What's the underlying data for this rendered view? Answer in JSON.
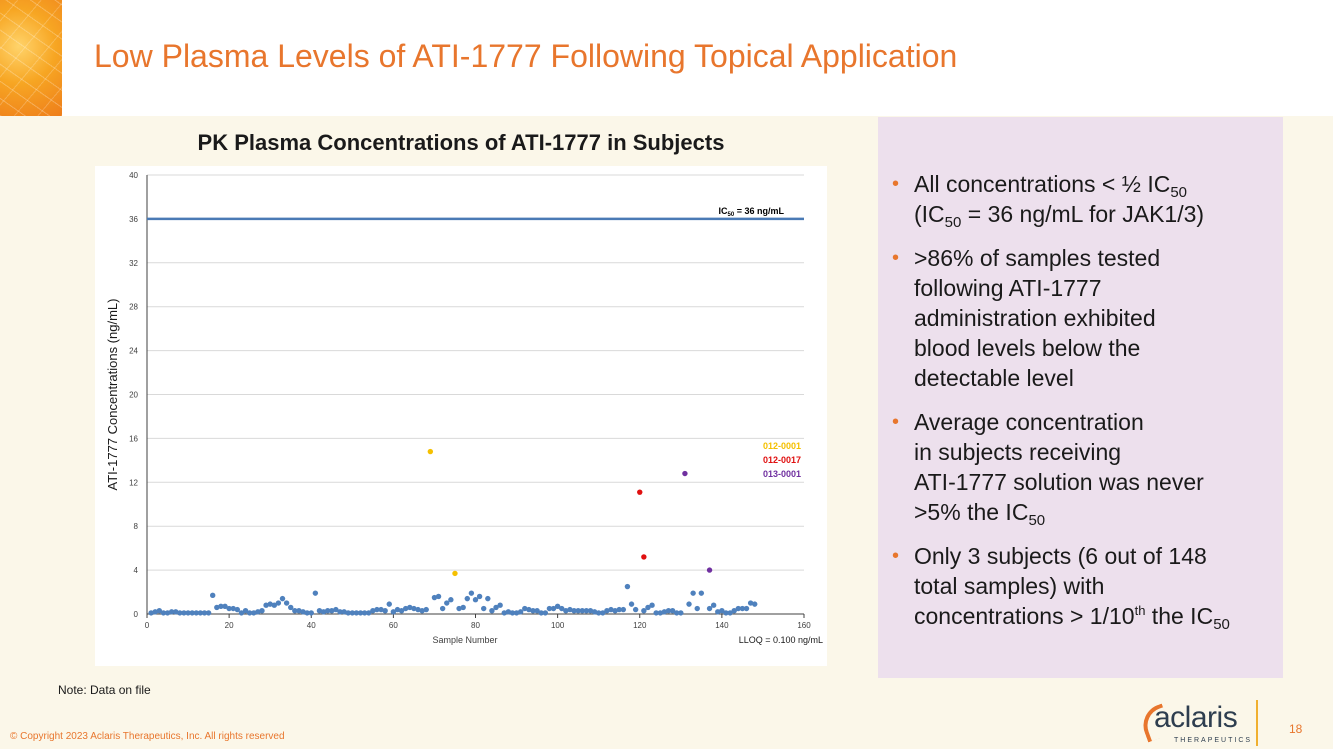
{
  "title": "Low Plasma Levels of ATI-1777 Following Topical Application",
  "chart_title": "PK Plasma Concentrations of ATI-1777 in Subjects",
  "chart_data": {
    "type": "scatter",
    "title": "PK Plasma Concentrations of ATI-1777 in Subjects",
    "xlabel": "Sample Number",
    "ylabel": "ATI-1777 Concentrations (ng/mL)",
    "xlim": [
      0,
      160
    ],
    "ylim": [
      0,
      40
    ],
    "xticks": [
      0,
      20,
      40,
      60,
      80,
      100,
      120,
      140,
      160
    ],
    "yticks": [
      0,
      4,
      8,
      12,
      16,
      20,
      24,
      28,
      32,
      36,
      40
    ],
    "grid": "horizontal",
    "reference_line": {
      "y": 36,
      "label_main": "IC",
      "label_sub": "50",
      "label_rest": " = 36 ng/mL"
    },
    "footnote": "LLOQ = 0.100 ng/mL",
    "legend": [
      {
        "label": "012-0001",
        "color": "#f5c000"
      },
      {
        "label": "012-0017",
        "color": "#e01010"
      },
      {
        "label": "013-0001",
        "color": "#7030a0"
      }
    ],
    "series": [
      {
        "color": "#4f81bd",
        "x": [
          1,
          2,
          3,
          4,
          5,
          6,
          7,
          8,
          9,
          10,
          11,
          12,
          13,
          14,
          15,
          16,
          17,
          18,
          19,
          20,
          21,
          22,
          23,
          24,
          25,
          26,
          27,
          28,
          29,
          30,
          31,
          32,
          33,
          34,
          35,
          36,
          37,
          38,
          39,
          40,
          41,
          42,
          43,
          44,
          45,
          46,
          47,
          48,
          49,
          50,
          51,
          52,
          53,
          54,
          55,
          56,
          57,
          58,
          59,
          60,
          61,
          62,
          63,
          64,
          65,
          66,
          67,
          68,
          70,
          71,
          72,
          73,
          74,
          76,
          77,
          78,
          79,
          80,
          81,
          82,
          83,
          84,
          85,
          86,
          87,
          88,
          89,
          90,
          91,
          92,
          93,
          94,
          95,
          96,
          97,
          98,
          99,
          100,
          101,
          102,
          103,
          104,
          105,
          106,
          107,
          108,
          109,
          110,
          111,
          112,
          113,
          114,
          115,
          116,
          117,
          118,
          119,
          121,
          122,
          123,
          124,
          125,
          126,
          127,
          128,
          129,
          130,
          132,
          133,
          134,
          135,
          137,
          138,
          139,
          140,
          141,
          142,
          143,
          144,
          145,
          146,
          147,
          148
        ],
        "y": [
          0.1,
          0.2,
          0.3,
          0.1,
          0.1,
          0.2,
          0.2,
          0.1,
          0.1,
          0.1,
          0.1,
          0.1,
          0.1,
          0.1,
          0.1,
          1.7,
          0.6,
          0.7,
          0.7,
          0.5,
          0.5,
          0.4,
          0.1,
          0.3,
          0.1,
          0.1,
          0.2,
          0.3,
          0.8,
          0.9,
          0.8,
          1.0,
          1.4,
          1.0,
          0.6,
          0.3,
          0.3,
          0.2,
          0.1,
          0.1,
          1.9,
          0.3,
          0.2,
          0.3,
          0.3,
          0.4,
          0.2,
          0.2,
          0.1,
          0.1,
          0.1,
          0.1,
          0.1,
          0.1,
          0.3,
          0.4,
          0.4,
          0.3,
          0.9,
          0.2,
          0.4,
          0.3,
          0.5,
          0.6,
          0.5,
          0.4,
          0.3,
          0.4,
          1.5,
          1.6,
          0.5,
          1.0,
          1.3,
          0.5,
          0.6,
          1.4,
          1.9,
          1.3,
          1.6,
          0.5,
          1.4,
          0.3,
          0.6,
          0.8,
          0.1,
          0.2,
          0.1,
          0.1,
          0.2,
          0.5,
          0.4,
          0.3,
          0.3,
          0.1,
          0.1,
          0.5,
          0.5,
          0.7,
          0.5,
          0.3,
          0.4,
          0.3,
          0.3,
          0.3,
          0.3,
          0.3,
          0.2,
          0.1,
          0.1,
          0.3,
          0.4,
          0.3,
          0.4,
          0.4,
          2.5,
          0.9,
          0.4,
          0.3,
          0.6,
          0.8,
          0.1,
          0.1,
          0.2,
          0.3,
          0.3,
          0.1,
          0.1,
          0.9,
          1.9,
          0.5,
          1.9,
          0.5,
          0.8,
          0.2,
          0.3,
          0.1,
          0.1,
          0.3,
          0.5,
          0.5,
          0.5,
          1.0,
          0.9
        ]
      },
      {
        "name": "012-0001",
        "color": "#f5c000",
        "x": [
          69,
          75
        ],
        "y": [
          14.8,
          3.7
        ]
      },
      {
        "name": "012-0017",
        "color": "#e01010",
        "x": [
          120,
          121
        ],
        "y": [
          11.1,
          5.2
        ]
      },
      {
        "name": "013-0001",
        "color": "#7030a0",
        "x": [
          131,
          137
        ],
        "y": [
          12.8,
          4.0
        ]
      }
    ]
  },
  "bullets": [
    {
      "parts": [
        {
          "t": "All concentrations < ½ IC"
        },
        {
          "sub": "50"
        },
        {
          "br": true
        },
        {
          "t": "(IC"
        },
        {
          "sub": "50"
        },
        {
          "t": " = 36 ng/mL for JAK1/3)"
        }
      ]
    },
    {
      "parts": [
        {
          "t": ">86% of samples tested"
        },
        {
          "br": true
        },
        {
          "t": "following ATI-1777"
        },
        {
          "br": true
        },
        {
          "t": "administration exhibited"
        },
        {
          "br": true
        },
        {
          "t": "blood levels below the"
        },
        {
          "br": true
        },
        {
          "t": "detectable level"
        }
      ]
    },
    {
      "parts": [
        {
          "t": "Average concentration"
        },
        {
          "br": true
        },
        {
          "t": "in subjects receiving"
        },
        {
          "br": true
        },
        {
          "t": "ATI-1777 solution was never"
        },
        {
          "br": true
        },
        {
          "t": ">5% the IC"
        },
        {
          "sub": "50"
        }
      ]
    },
    {
      "parts": [
        {
          "t": "Only 3 subjects (6 out of 148"
        },
        {
          "br": true
        },
        {
          "t": "total samples) with"
        },
        {
          "br": true
        },
        {
          "t": "concentrations > 1/10"
        },
        {
          "sup": "th"
        },
        {
          "t": " the IC"
        },
        {
          "sub": "50"
        }
      ]
    }
  ],
  "note": "Note: Data on file",
  "copyright": "© Copyright 2023 Aclaris Therapeutics, Inc. All rights reserved",
  "logo": {
    "word": "aclaris",
    "sub": "THERAPEUTICS"
  },
  "page_number": "18",
  "colors": {
    "accent": "#e8762d",
    "panel": "#ede0ed",
    "background": "#fbf7e9",
    "series": "#4f81bd"
  }
}
